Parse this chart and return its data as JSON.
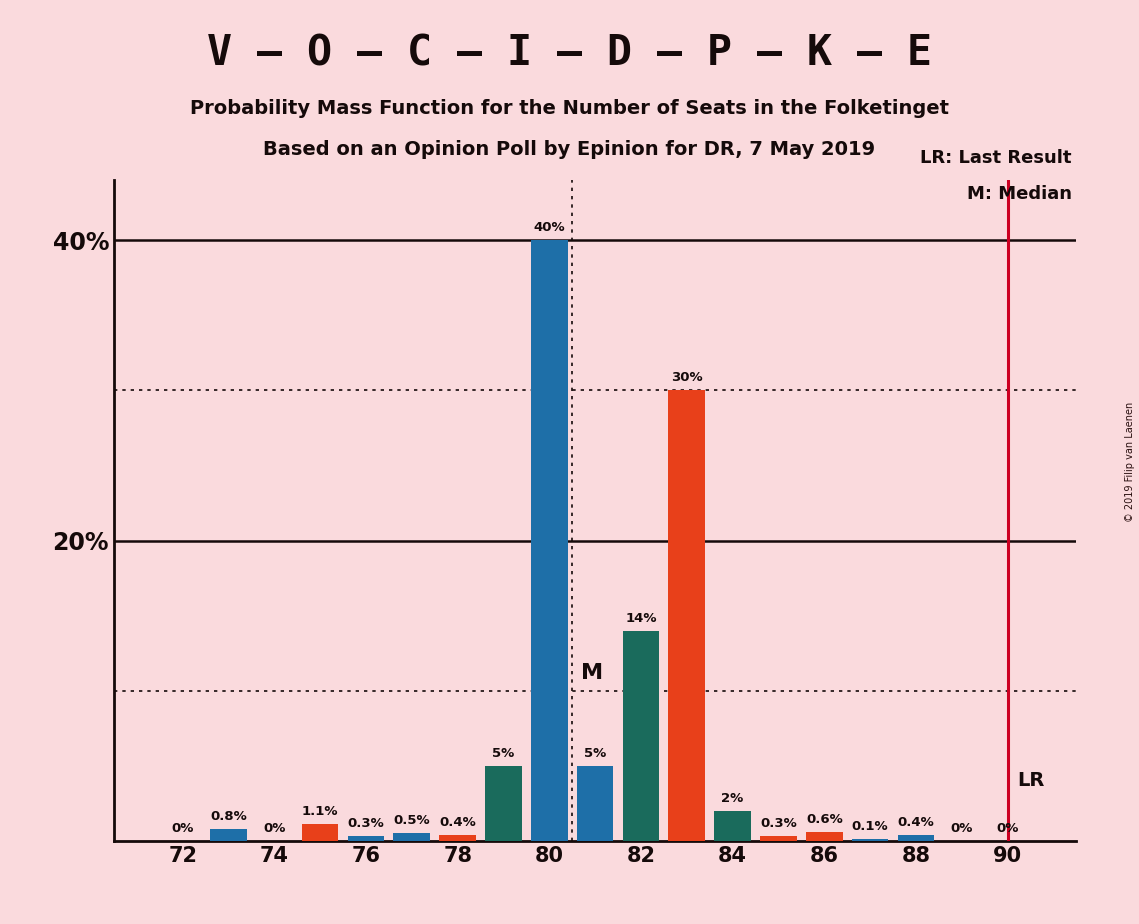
{
  "title_main": "V – O – C – I – D – P – K – E",
  "subtitle1": "Probability Mass Function for the Number of Seats in the Folketinget",
  "subtitle2": "Based on an Opinion Poll by Epinion for DR, 7 May 2019",
  "copyright": "© 2019 Filip van Laenen",
  "background_color": "#fadadd",
  "seats": [
    72,
    73,
    74,
    75,
    76,
    77,
    78,
    79,
    80,
    81,
    82,
    83,
    84,
    85,
    86,
    87,
    88,
    89,
    90
  ],
  "values": [
    0.0,
    0.8,
    0.0,
    1.1,
    0.3,
    0.5,
    0.4,
    5.0,
    40.0,
    5.0,
    14.0,
    30.0,
    2.0,
    0.3,
    0.6,
    0.1,
    0.4,
    0.0,
    0.0
  ],
  "colors": [
    "#1e6fa8",
    "#1e6fa8",
    "#e8401a",
    "#e8401a",
    "#1e6fa8",
    "#1e6fa8",
    "#e8401a",
    "#1a6b5c",
    "#1e6fa8",
    "#1e6fa8",
    "#1a6b5c",
    "#e8401a",
    "#1a6b5c",
    "#e8401a",
    "#e8401a",
    "#1e6fa8",
    "#1e6fa8",
    "#1e6fa8",
    "#1e6fa8"
  ],
  "median_x": 80.5,
  "lr_x": 90,
  "ylim": [
    0,
    44
  ],
  "yticks": [
    0,
    20,
    40
  ],
  "ytick_labels": [
    "",
    "20%",
    "40%"
  ],
  "xticks": [
    72,
    74,
    76,
    78,
    80,
    82,
    84,
    86,
    88,
    90
  ],
  "axis_color": "#150a0a",
  "bar_width": 0.8,
  "lr_label": "LR: Last Result",
  "m_label": "M: Median",
  "lr_inline": "LR",
  "m_inline": "M",
  "grid_color": "#150a0a",
  "dotted_grid_levels": [
    10,
    30
  ],
  "solid_grid_levels": [
    20,
    40
  ],
  "lr_line_color": "#cc0022",
  "median_line_color": "#150a0a"
}
